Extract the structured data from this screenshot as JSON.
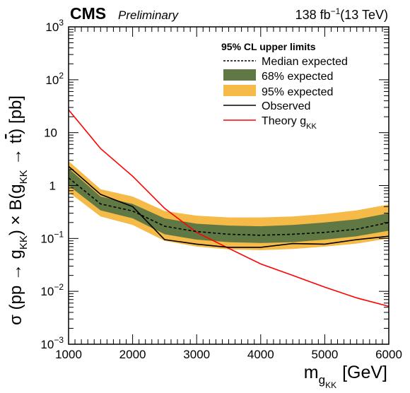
{
  "header": {
    "experiment": "CMS",
    "status": "Preliminary",
    "lumi_text": "138 fb",
    "lumi_exp": "−1",
    "energy_text": "(13 TeV)"
  },
  "axes": {
    "ylabel": {
      "p1": "σ (pp → g",
      "sub1": "KK",
      "p2": ") × B(g",
      "sub2": "KK",
      "p3": " → t",
      "tbar": "t",
      "p4": ") [pb]"
    },
    "xlabel": {
      "main": "m",
      "sub": "g",
      "subsub": "KK",
      "unit": "[GeV]"
    }
  },
  "legend": {
    "title": "95% CL upper limits",
    "median": "Median expected",
    "band68": "68% expected",
    "band95": "95% expected",
    "observed": "Observed",
    "theory": "Theory g",
    "theory_sub": "KK"
  },
  "colors": {
    "band68": "#607843",
    "band95": "#F5BA48",
    "observed": "#000000",
    "median": "#000000",
    "theory": "#FF0000"
  },
  "chart_data": {
    "type": "line",
    "x_scale": "linear",
    "y_scale": "log",
    "xlim": [
      1000,
      6000
    ],
    "ylim": [
      0.001,
      1000
    ],
    "x_ticks": [
      1000,
      2000,
      3000,
      4000,
      5000,
      6000
    ],
    "x_tick_labels": [
      "1000",
      "2000",
      "3000",
      "4000",
      "5000",
      "6000"
    ],
    "y_ticks": [
      0.001,
      0.01,
      0.1,
      1,
      10,
      100,
      1000
    ],
    "y_tick_labels": [
      {
        "base": "10",
        "exp": "−3"
      },
      {
        "base": "10",
        "exp": "−2"
      },
      {
        "base": "10",
        "exp": "−1"
      },
      {
        "base": "1",
        "exp": ""
      },
      {
        "base": "10",
        "exp": ""
      },
      {
        "base": "10",
        "exp": "2"
      },
      {
        "base": "10",
        "exp": "3"
      }
    ],
    "mass": [
      1000,
      1500,
      2000,
      2500,
      3000,
      3500,
      4000,
      4500,
      5000,
      5500,
      6000
    ],
    "expected_median": [
      1.4,
      0.45,
      0.33,
      0.17,
      0.135,
      0.12,
      0.115,
      0.12,
      0.13,
      0.15,
      0.2
    ],
    "band68_low": [
      1.0,
      0.34,
      0.24,
      0.12,
      0.095,
      0.085,
      0.082,
      0.085,
      0.095,
      0.11,
      0.14
    ],
    "band68_high": [
      2.1,
      0.62,
      0.45,
      0.24,
      0.19,
      0.175,
      0.17,
      0.18,
      0.2,
      0.23,
      0.3
    ],
    "band95_low": [
      0.75,
      0.26,
      0.18,
      0.09,
      0.07,
      0.062,
      0.06,
      0.063,
      0.07,
      0.08,
      0.1
    ],
    "band95_high": [
      2.9,
      0.85,
      0.62,
      0.33,
      0.27,
      0.25,
      0.25,
      0.26,
      0.29,
      0.34,
      0.44
    ],
    "observed": [
      2.3,
      0.68,
      0.4,
      0.095,
      0.078,
      0.068,
      0.068,
      0.08,
      0.078,
      0.095,
      0.11
    ],
    "theory": [
      27,
      5,
      1.5,
      0.37,
      0.13,
      0.065,
      0.033,
      0.02,
      0.012,
      0.0075,
      0.0052
    ],
    "grid": false,
    "legend_position": "top-right"
  }
}
